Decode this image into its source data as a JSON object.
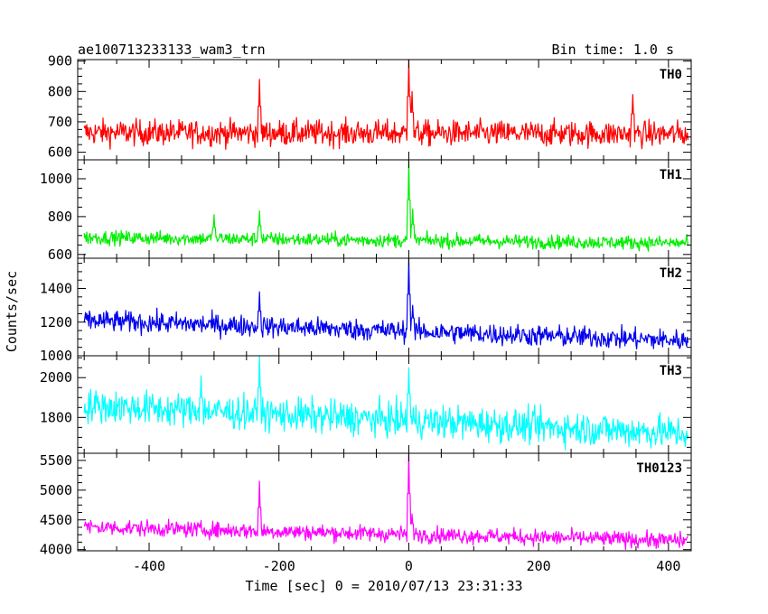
{
  "header": {
    "title": "ae100713233133_wam3_trn",
    "bin_time": "Bin time: 1.0 s"
  },
  "chart_data": {
    "type": "line",
    "title": "ae100713233133_wam3_trn",
    "xlabel": "Time [sec] 0 = 2010/07/13 23:31:33",
    "ylabel": "Counts/sec",
    "xlim": [
      -510,
      435
    ],
    "x_range": [
      -500,
      430
    ],
    "x_ticks": [
      -400,
      -200,
      0,
      200,
      400
    ],
    "grid": false,
    "panels": [
      {
        "name": "TH0",
        "color": "#ff0000",
        "ylim": [
          575,
          905
        ],
        "y_ticks": [
          600,
          700,
          800,
          900
        ],
        "baseline_start": 665,
        "baseline_end": 660,
        "noise": 30,
        "spikes": [
          {
            "x": -230,
            "value": 840
          },
          {
            "x": 0,
            "value": 905
          },
          {
            "x": 5,
            "value": 800
          },
          {
            "x": 345,
            "value": 790
          }
        ]
      },
      {
        "name": "TH1",
        "color": "#00ee00",
        "ylim": [
          580,
          1100
        ],
        "y_ticks": [
          600,
          800,
          1000
        ],
        "baseline_start": 690,
        "baseline_end": 660,
        "noise": 26,
        "spikes": [
          {
            "x": -230,
            "value": 830
          },
          {
            "x": -300,
            "value": 810
          },
          {
            "x": 0,
            "value": 1100
          },
          {
            "x": 6,
            "value": 840
          }
        ]
      },
      {
        "name": "TH2",
        "color": "#0000ee",
        "ylim": [
          1000,
          1580
        ],
        "y_ticks": [
          1000,
          1200,
          1400
        ],
        "baseline_start": 1210,
        "baseline_end": 1090,
        "noise": 45,
        "spikes": [
          {
            "x": -230,
            "value": 1380
          },
          {
            "x": 0,
            "value": 1580
          },
          {
            "x": 6,
            "value": 1300
          }
        ]
      },
      {
        "name": "TH3",
        "color": "#00ffff",
        "ylim": [
          1620,
          2110
        ],
        "y_ticks": [
          1800,
          2000
        ],
        "baseline_start": 1860,
        "baseline_end": 1720,
        "noise": 60,
        "spikes": [
          {
            "x": -230,
            "value": 2110
          },
          {
            "x": 0,
            "value": 2050
          },
          {
            "x": -320,
            "value": 2010
          }
        ]
      },
      {
        "name": "TH0123",
        "color": "#ff00ff",
        "ylim": [
          3980,
          5620
        ],
        "y_ticks": [
          4000,
          4500,
          5000,
          5500
        ],
        "baseline_start": 4380,
        "baseline_end": 4150,
        "noise": 95,
        "spikes": [
          {
            "x": -230,
            "value": 5150
          },
          {
            "x": 0,
            "value": 5620
          },
          {
            "x": 5,
            "value": 4600
          }
        ]
      }
    ]
  }
}
